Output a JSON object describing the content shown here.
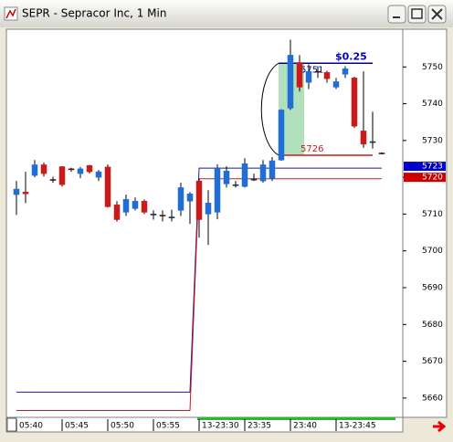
{
  "window_title": "SEPR - Sepracor Inc, 1 Min",
  "chart_data": {
    "type": "candlestick",
    "categories": [
      "05:40",
      null,
      null,
      null,
      null,
      "05:45",
      null,
      null,
      null,
      null,
      "05:50",
      null,
      null,
      null,
      null,
      "05:55",
      null,
      null,
      null,
      null,
      "13-23:30",
      null,
      null,
      null,
      null,
      "23:35",
      null,
      null,
      null,
      null,
      "23:40",
      null,
      null,
      null,
      null,
      "13-23:45",
      null,
      null,
      null,
      null,
      null
    ],
    "open": [
      5715.3,
      5716,
      5720.5,
      5723.4,
      5719.4,
      5722.9,
      5722.3,
      5721,
      5723.2,
      5720,
      5722.8,
      5712.5,
      5710.5,
      5711.5,
      5713.5,
      5710,
      5709.7,
      5709,
      5711,
      5713.5,
      5719,
      5710,
      5710.5,
      5718.2,
      5718,
      5717.5,
      5719.5,
      5719,
      5719.7,
      5724.7,
      5738.8,
      5751.2,
      5745.8,
      5748.8,
      5748.5,
      5744.5,
      5748,
      5747,
      5732.6,
      5729.6,
      5726.6
    ],
    "high": [
      5719,
      5721.5,
      5724.7,
      5724,
      5720.2,
      5723,
      5722.6,
      5722.8,
      5723.4,
      5722,
      5723.5,
      5713.5,
      5715.3,
      5714.5,
      5714,
      5711,
      5711,
      5711.2,
      5718.5,
      5716,
      5719.7,
      5716.5,
      5723.5,
      5723,
      5719,
      5725.2,
      5721,
      5724.7,
      5725.5,
      5738.5,
      5757.4,
      5753.2,
      5750.7,
      5750.2,
      5749,
      5747,
      5750.2,
      5747.3,
      5748.8,
      5737.8,
      5726.8
    ],
    "low": [
      5709.8,
      5713,
      5720,
      5720.2,
      5718.5,
      5717.5,
      5721.5,
      5719.8,
      5721,
      5719,
      5711.8,
      5708,
      5709.5,
      5711,
      5710,
      5708.5,
      5708,
      5708,
      5709.5,
      5707.3,
      5703.6,
      5701.6,
      5708.6,
      5717.2,
      5717.2,
      5717.2,
      5719,
      5718.5,
      5719,
      5724.5,
      5738.3,
      5743.3,
      5744,
      5747,
      5745.7,
      5744,
      5747,
      5733.4,
      5728,
      5727.8,
      5726.2
    ],
    "close": [
      5716.8,
      5715.5,
      5723.4,
      5721,
      5719.2,
      5718,
      5722.1,
      5722.3,
      5721.5,
      5721.5,
      5712,
      5708.5,
      5714,
      5713.5,
      5710.5,
      5710,
      5709.5,
      5709.2,
      5717.2,
      5715.5,
      5708.5,
      5713,
      5722.5,
      5721.7,
      5718,
      5723.7,
      5719.5,
      5723.4,
      5724.5,
      5738.3,
      5753.2,
      5744.5,
      5748.8,
      5748.6,
      5746.8,
      5746,
      5749.5,
      5733.9,
      5729,
      5729.7,
      5726.4
    ],
    "up_color": "#1f6fd6",
    "down_color": "#cc1a1a",
    "lines": [
      {
        "color": "#1a1aa0",
        "values": [
          5661.6,
          5661.6,
          5661.6,
          5661.6,
          5661.6,
          5661.6,
          5661.6,
          5661.6,
          5661.6,
          5661.6,
          5661.6,
          5661.6,
          5661.6,
          5661.6,
          5661.6,
          5661.6,
          5661.6,
          5661.6,
          5661.6,
          5661.6,
          5722.5,
          5722.5,
          5722.5,
          5722.5,
          5722.5,
          5722.5,
          5722.5,
          5722.5,
          5722.5,
          5722.5,
          5722.5,
          5722.5,
          5722.5,
          5722.5,
          5722.5,
          5722.5,
          5722.5,
          5722.5,
          5722.5,
          5722.5,
          5722.5
        ]
      },
      {
        "color": "#cc1a1a",
        "values": [
          5656.6,
          5656.6,
          5656.6,
          5656.6,
          5656.6,
          5656.6,
          5656.6,
          5656.6,
          5656.6,
          5656.6,
          5656.6,
          5656.6,
          5656.6,
          5656.6,
          5656.6,
          5656.6,
          5656.6,
          5656.6,
          5656.6,
          5656.6,
          5719.6,
          5719.6,
          5719.6,
          5719.6,
          5719.6,
          5719.6,
          5719.6,
          5719.6,
          5719.6,
          5719.6,
          5719.6,
          5719.6,
          5719.6,
          5719.6,
          5719.6,
          5719.6,
          5719.6,
          5719.6,
          5719.6,
          5719.6,
          5719.6
        ]
      }
    ],
    "price_flags": [
      {
        "value": 5723,
        "color": "#0000cc"
      },
      {
        "value": 5720,
        "color": "#cc0000"
      }
    ],
    "price_lines": [
      {
        "value": 5751,
        "color": "#00008b"
      },
      {
        "value": 5726,
        "color": "#cc1a1a"
      }
    ],
    "change_label": "$0.25",
    "ylim": [
      5655,
      5760
    ],
    "yticks": [
      5660,
      5670,
      5680,
      5690,
      5700,
      5710,
      5720,
      5730,
      5740,
      5750
    ]
  }
}
